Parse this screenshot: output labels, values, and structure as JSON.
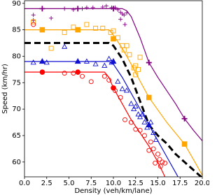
{
  "chart_data": {
    "type": "scatter",
    "x_label": "Density (veh/km/lane)",
    "y_label": "Speed (km/hr)",
    "xlim": [
      0,
      20
    ],
    "ylim": [
      57.2,
      90.5
    ],
    "xticks": [
      {
        "value": 0,
        "label": "0.0"
      },
      {
        "value": 2.5,
        "label": "2.5"
      },
      {
        "value": 5,
        "label": "5.0"
      },
      {
        "value": 7.5,
        "label": "7.5"
      },
      {
        "value": 10,
        "label": "10.0"
      },
      {
        "value": 12.5,
        "label": "12.5"
      },
      {
        "value": 15,
        "label": "15.0"
      },
      {
        "value": 17.5,
        "label": "17.5"
      },
      {
        "value": 20,
        "label": "20.0"
      }
    ],
    "yticks": [
      60,
      65,
      70,
      75,
      80,
      85,
      90
    ],
    "grid": false,
    "series": [
      {
        "kind": "line",
        "color": "#800080",
        "width": 1.2,
        "x": [
          0,
          2,
          4,
          6,
          8,
          10,
          11,
          11.5,
          12,
          13,
          14,
          15,
          16,
          17,
          18,
          19,
          20
        ],
        "values": [
          89,
          89,
          89,
          89,
          89,
          89,
          89,
          88.6,
          87.5,
          83.5,
          78.8,
          76,
          73.5,
          71,
          68.2,
          66,
          64
        ]
      },
      {
        "kind": "line",
        "color": "#ffa500",
        "width": 1.2,
        "x": [
          0,
          2,
          4,
          6,
          8,
          9.5,
          10,
          11,
          12,
          13,
          14,
          16,
          18,
          19,
          20
        ],
        "values": [
          85,
          85,
          85,
          85,
          85,
          85,
          84,
          81.5,
          78.5,
          75.3,
          72.2,
          67.5,
          63.4,
          60.5,
          57.5
        ]
      },
      {
        "kind": "line",
        "color": "#000000",
        "width": 3,
        "dash": true,
        "x": [
          0,
          2,
          4,
          6,
          8,
          9.5,
          10,
          11,
          12,
          13,
          14,
          15,
          16,
          17,
          18,
          19,
          20
        ],
        "values": [
          82.5,
          82.5,
          82.5,
          82.5,
          82.5,
          82.5,
          82,
          79.5,
          76,
          71.5,
          67,
          65,
          63.5,
          61.5,
          60,
          58.5,
          57
        ]
      },
      {
        "kind": "line",
        "color": "#1010d0",
        "width": 1.2,
        "x": [
          0,
          2,
          4,
          6,
          8,
          9.5,
          10,
          11,
          12,
          13,
          14,
          15,
          16,
          17,
          17.5
        ],
        "values": [
          79,
          79,
          79,
          79,
          79,
          79,
          78.5,
          76,
          73,
          70,
          67,
          64,
          61,
          58,
          56.5
        ]
      },
      {
        "kind": "line",
        "color": "#ff0000",
        "width": 1.2,
        "x": [
          0,
          2,
          4,
          6,
          8,
          9,
          9.5,
          10,
          11,
          12,
          13,
          14,
          15,
          15.8
        ],
        "values": [
          77,
          77,
          77,
          77,
          77,
          77,
          76,
          74,
          71,
          68,
          65.5,
          63,
          60,
          57.2
        ]
      },
      {
        "kind": "scatter",
        "marker": "plus",
        "filled": false,
        "color": "#800080",
        "x": [
          1,
          1,
          3,
          4.5,
          5.5,
          6.5,
          7,
          7.7,
          8.8,
          9.2,
          9.8,
          10.2,
          10.5,
          10.8,
          11,
          11.2,
          11.5,
          10.8,
          11.3
        ],
        "values": [
          87.8,
          86.8,
          87.2,
          89,
          88.8,
          89,
          89.2,
          89.2,
          89.3,
          89.5,
          89.2,
          89.2,
          88.8,
          88.3,
          88,
          87.8,
          88.2,
          87,
          86
        ]
      },
      {
        "kind": "scatter",
        "marker": "square",
        "filled": false,
        "color": "#ffa500",
        "x": [
          1,
          3,
          4.5,
          5.5,
          7,
          8,
          8.8,
          9.7,
          10,
          10.5,
          11,
          11.2,
          11.5,
          11.8,
          12.3,
          12.5,
          12.8,
          13,
          12.5
        ],
        "values": [
          86.5,
          81.5,
          84.5,
          85.5,
          86,
          85.3,
          85.3,
          84.5,
          84.8,
          83.5,
          82,
          81.2,
          82,
          80.3,
          77.8,
          78.2,
          77.5,
          79.8,
          76.5
        ]
      },
      {
        "kind": "scatter",
        "marker": "triangle",
        "filled": false,
        "color": "#1010d0",
        "x": [
          1,
          2.5,
          4.5,
          7,
          8,
          9,
          9.5,
          9.8,
          10.5,
          11,
          11.5,
          12,
          12.3,
          12.5,
          12.8,
          13,
          13.3,
          13.5,
          13.8,
          14.2,
          14.5,
          14.8
        ],
        "values": [
          78.8,
          78.8,
          81.8,
          79,
          78.5,
          78.2,
          79.5,
          78.8,
          75.2,
          73.8,
          73.5,
          71,
          70,
          70.5,
          69,
          68.5,
          69,
          67.5,
          66.5,
          67.5,
          65.5,
          64.2
        ]
      },
      {
        "kind": "scatter",
        "marker": "circle",
        "filled": false,
        "color": "#ff0000",
        "x": [
          1,
          4.5,
          5.5,
          6.5,
          7.5,
          9,
          9.5,
          10.2,
          10.8,
          11.3,
          12,
          12.5,
          13,
          13.5,
          14,
          14.2,
          14.5,
          14.7,
          15,
          15.2,
          15.3,
          15.5,
          15.8
        ],
        "values": [
          86,
          76.8,
          76.8,
          76.2,
          75.2,
          76.2,
          75.5,
          73.5,
          72.2,
          68,
          67.5,
          66.2,
          66,
          65,
          62.2,
          63.8,
          62.5,
          59.8,
          61.5,
          60.5,
          59.2,
          60,
          59.8
        ]
      },
      {
        "kind": "scatter",
        "marker": "plus",
        "filled": true,
        "color": "#800080",
        "x": [
          2,
          6,
          10,
          14,
          18
        ],
        "values": [
          89,
          89,
          89,
          78.8,
          68.2
        ]
      },
      {
        "kind": "scatter",
        "marker": "square",
        "filled": true,
        "color": "#ffa500",
        "x": [
          2,
          6,
          10,
          14,
          18
        ],
        "values": [
          85,
          85,
          83.3,
          72.2,
          63.4
        ]
      },
      {
        "kind": "scatter",
        "marker": "triangle",
        "filled": true,
        "color": "#1010d0",
        "x": [
          2,
          6,
          10,
          14
        ],
        "values": [
          79,
          79,
          79,
          67
        ]
      },
      {
        "kind": "scatter",
        "marker": "circle",
        "filled": true,
        "color": "#ff0000",
        "x": [
          2,
          6,
          10
        ],
        "values": [
          77,
          77,
          74
        ]
      }
    ]
  }
}
